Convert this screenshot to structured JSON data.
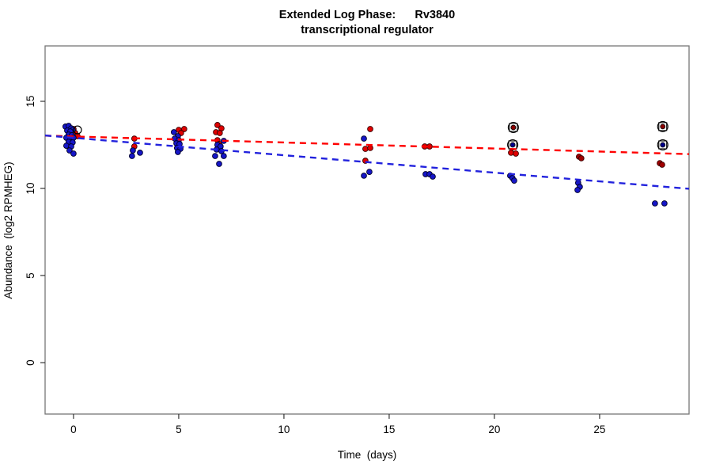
{
  "title": {
    "line1": "Extended Log Phase:      Rv3840",
    "line2": "transcriptional regulator"
  },
  "axes": {
    "xlabel": "Time  (days)",
    "ylabel": "Abundance  (log2 RPMHEG)",
    "x_ticks": [
      0,
      5,
      10,
      15,
      20,
      25
    ],
    "y_ticks": [
      0,
      5,
      10,
      15
    ]
  },
  "colors": {
    "red_point": "#e00000",
    "red_point_edge": "#3a0000",
    "dark_red": "#a00000",
    "blue_point": "#1616c8",
    "blue_point_edge": "#000028",
    "navy_dot": "#00008b",
    "dark_red_dot": "#8b0000",
    "red_line": "#ff0000",
    "blue_line": "#2222dd",
    "box_stroke": "#777777",
    "tick_stroke": "#333333"
  },
  "chart_data": {
    "type": "scatter",
    "title": "Extended Log Phase: Rv3840 transcriptional regulator",
    "xlabel": "Time (days)",
    "ylabel": "Abundance (log2 RPMHEG)",
    "xlim": [
      -1.35,
      29.25
    ],
    "ylim": [
      -2.95,
      18.18
    ],
    "grid": false,
    "legend": "none",
    "series": [
      {
        "name": "red-condition-points",
        "marker": "filled-circle",
        "color_key": "red_point",
        "points": [
          [
            0.08,
            13.18
          ],
          [
            0.19,
            13.0
          ],
          [
            0.0,
            13.41
          ],
          [
            2.89,
            12.86
          ],
          [
            2.89,
            12.41
          ],
          [
            5.0,
            13.36
          ],
          [
            5.26,
            13.41
          ],
          [
            5.11,
            13.18
          ],
          [
            6.84,
            13.64
          ],
          [
            7.03,
            13.45
          ],
          [
            6.77,
            13.23
          ],
          [
            6.95,
            13.18
          ],
          [
            6.84,
            12.77
          ],
          [
            6.92,
            12.55
          ],
          [
            14.1,
            13.41
          ],
          [
            13.87,
            12.27
          ],
          [
            14.1,
            12.32
          ],
          [
            13.87,
            11.59
          ],
          [
            16.69,
            12.41
          ],
          [
            16.92,
            12.41
          ],
          [
            20.79,
            12.05
          ],
          [
            21.02,
            12.0
          ]
        ]
      },
      {
        "name": "dark-red-condition-points",
        "marker": "filled-circle",
        "color_key": "dark_red",
        "points": [
          [
            24.02,
            11.82
          ],
          [
            24.13,
            11.73
          ],
          [
            27.86,
            11.45
          ],
          [
            27.97,
            11.36
          ]
        ]
      },
      {
        "name": "blue-condition-points",
        "marker": "filled-circle",
        "color_key": "blue_point",
        "points": [
          [
            -0.38,
            13.55
          ],
          [
            -0.23,
            13.59
          ],
          [
            -0.11,
            13.45
          ],
          [
            -0.3,
            13.32
          ],
          [
            -0.04,
            13.36
          ],
          [
            -0.15,
            13.27
          ],
          [
            -0.23,
            13.09
          ],
          [
            -0.08,
            13.05
          ],
          [
            -0.34,
            12.91
          ],
          [
            -0.15,
            12.86
          ],
          [
            0.0,
            12.91
          ],
          [
            -0.23,
            12.68
          ],
          [
            -0.04,
            12.64
          ],
          [
            -0.34,
            12.45
          ],
          [
            -0.11,
            12.41
          ],
          [
            -0.19,
            12.18
          ],
          [
            0.0,
            12.0
          ],
          [
            2.82,
            12.18
          ],
          [
            2.78,
            11.86
          ],
          [
            3.16,
            12.05
          ],
          [
            4.77,
            13.23
          ],
          [
            4.96,
            13.0
          ],
          [
            4.81,
            12.86
          ],
          [
            5.0,
            12.77
          ],
          [
            4.89,
            12.59
          ],
          [
            5.04,
            12.55
          ],
          [
            4.92,
            12.32
          ],
          [
            5.08,
            12.27
          ],
          [
            4.96,
            12.09
          ],
          [
            7.14,
            12.73
          ],
          [
            6.84,
            12.5
          ],
          [
            6.99,
            12.41
          ],
          [
            6.8,
            12.23
          ],
          [
            7.03,
            12.14
          ],
          [
            6.73,
            11.86
          ],
          [
            7.14,
            11.86
          ],
          [
            6.92,
            11.41
          ],
          [
            13.8,
            12.86
          ],
          [
            14.06,
            10.95
          ],
          [
            13.8,
            10.73
          ],
          [
            16.73,
            10.82
          ],
          [
            16.92,
            10.82
          ],
          [
            17.07,
            10.68
          ],
          [
            20.75,
            10.73
          ],
          [
            20.86,
            10.59
          ],
          [
            20.94,
            10.45
          ],
          [
            23.98,
            10.32
          ],
          [
            24.06,
            10.09
          ],
          [
            23.95,
            9.91
          ],
          [
            27.63,
            9.14
          ],
          [
            28.08,
            9.14
          ]
        ]
      },
      {
        "name": "circled-dark-red-outliers",
        "marker": "circle-square-dot",
        "color_key": "dark_red_dot",
        "points": [
          [
            20.9,
            13.5
          ],
          [
            28.0,
            13.55
          ]
        ]
      },
      {
        "name": "circled-navy-outliers",
        "marker": "circle-square-dot",
        "color_key": "navy_dot",
        "points": [
          [
            20.87,
            12.5
          ],
          [
            28.0,
            12.5
          ]
        ]
      },
      {
        "name": "flagged-open-circle",
        "marker": "open-circle",
        "color_key": "tick_stroke",
        "points": [
          [
            0.19,
            13.36
          ]
        ]
      }
    ],
    "trend_lines": [
      {
        "name": "red-trend-dashed",
        "color_key": "red_line",
        "x": [
          -1.35,
          29.25
        ],
        "y": [
          13.03,
          11.97
        ]
      },
      {
        "name": "blue-trend-dashed",
        "color_key": "blue_line",
        "x": [
          -1.35,
          29.25
        ],
        "y": [
          13.04,
          9.98
        ]
      }
    ]
  }
}
